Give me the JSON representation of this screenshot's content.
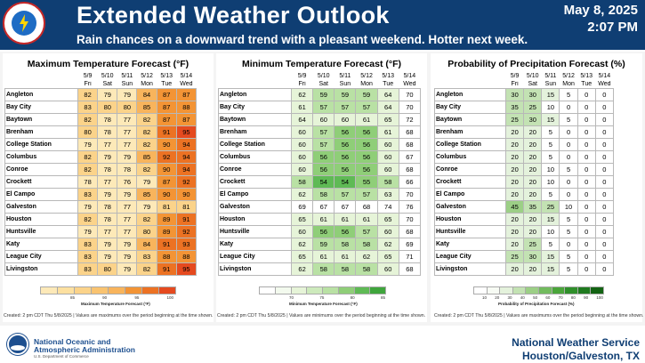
{
  "header": {
    "title": "Extended Weather Outlook",
    "subtitle": "Rain chances on a downward trend with a pleasant weekend. Hotter next week.",
    "date": "May 8, 2025",
    "time": "2:07 PM"
  },
  "dates": [
    "5/9",
    "5/10",
    "5/11",
    "5/12",
    "5/13",
    "5/14"
  ],
  "days": [
    "Fri",
    "Sat",
    "Sun",
    "Mon",
    "Tue",
    "Wed"
  ],
  "cities": [
    "Angleton",
    "Bay City",
    "Baytown",
    "Brenham",
    "College Station",
    "Columbus",
    "Conroe",
    "Crockett",
    "El Campo",
    "Galveston",
    "Houston",
    "Huntsville",
    "Katy",
    "League City",
    "Livingston"
  ],
  "max_temp": {
    "title": "Maximum Temperature Forecast (°F)",
    "legend_title": "Maximum Temperature Forecast (°F)",
    "legend_ticks": [
      "85",
      "90",
      "95",
      "100"
    ],
    "note": "Created: 2 pm CDT Thu 5/8/2025 | Values are maximums over the period beginning at the time shown.",
    "rows": [
      [
        "82",
        "79",
        "79",
        "84",
        "87",
        "87"
      ],
      [
        "83",
        "80",
        "80",
        "85",
        "87",
        "88"
      ],
      [
        "82",
        "78",
        "77",
        "82",
        "87",
        "87"
      ],
      [
        "80",
        "78",
        "77",
        "82",
        "91",
        "95"
      ],
      [
        "79",
        "77",
        "77",
        "82",
        "90",
        "94"
      ],
      [
        "82",
        "79",
        "79",
        "85",
        "92",
        "94"
      ],
      [
        "82",
        "78",
        "78",
        "82",
        "90",
        "94"
      ],
      [
        "78",
        "77",
        "76",
        "79",
        "87",
        "92"
      ],
      [
        "83",
        "79",
        "79",
        "85",
        "90",
        "90"
      ],
      [
        "79",
        "78",
        "77",
        "79",
        "81",
        "81"
      ],
      [
        "82",
        "78",
        "77",
        "82",
        "89",
        "91"
      ],
      [
        "79",
        "77",
        "77",
        "80",
        "89",
        "92"
      ],
      [
        "83",
        "79",
        "79",
        "84",
        "91",
        "93"
      ],
      [
        "83",
        "79",
        "79",
        "83",
        "88",
        "88"
      ],
      [
        "83",
        "80",
        "79",
        "82",
        "91",
        "95"
      ]
    ]
  },
  "min_temp": {
    "title": "Minimum Temperature Forecast (°F)",
    "legend_title": "Minimum Temperature Forecast (°F)",
    "legend_ticks": [
      "70",
      "75",
      "80",
      "85"
    ],
    "note": "Created: 2 pm CDT Thu 5/8/2025 | Values are minimums over the period beginning at the time shown.",
    "rows": [
      [
        "62",
        "59",
        "59",
        "59",
        "64",
        "70"
      ],
      [
        "61",
        "57",
        "57",
        "57",
        "64",
        "70"
      ],
      [
        "64",
        "60",
        "60",
        "61",
        "65",
        "72"
      ],
      [
        "60",
        "57",
        "56",
        "56",
        "61",
        "68"
      ],
      [
        "60",
        "57",
        "56",
        "56",
        "60",
        "68"
      ],
      [
        "60",
        "56",
        "56",
        "56",
        "60",
        "67"
      ],
      [
        "60",
        "56",
        "56",
        "56",
        "60",
        "68"
      ],
      [
        "58",
        "54",
        "54",
        "55",
        "58",
        "66"
      ],
      [
        "62",
        "58",
        "57",
        "57",
        "63",
        "70"
      ],
      [
        "69",
        "67",
        "67",
        "68",
        "74",
        "76"
      ],
      [
        "65",
        "61",
        "61",
        "61",
        "65",
        "70"
      ],
      [
        "60",
        "56",
        "56",
        "57",
        "60",
        "68"
      ],
      [
        "62",
        "59",
        "58",
        "58",
        "62",
        "69"
      ],
      [
        "65",
        "61",
        "61",
        "62",
        "65",
        "71"
      ],
      [
        "62",
        "58",
        "58",
        "58",
        "60",
        "68"
      ]
    ]
  },
  "pop": {
    "title": "Probability of Precipitation Forecast (%)",
    "legend_title": "Probability of Precipitation Forecast (%)",
    "legend_ticks": [
      "10",
      "20",
      "30",
      "40",
      "50",
      "60",
      "70",
      "80",
      "90",
      "100"
    ],
    "note": "Created: 2 pm CDT Thu 5/8/2025 | Values are maximums over the period beginning at the time shown.",
    "rows": [
      [
        "30",
        "30",
        "15",
        "5",
        "0",
        "0"
      ],
      [
        "35",
        "25",
        "10",
        "0",
        "0",
        "0"
      ],
      [
        "25",
        "30",
        "15",
        "5",
        "0",
        "0"
      ],
      [
        "20",
        "20",
        "5",
        "0",
        "0",
        "0"
      ],
      [
        "20",
        "20",
        "5",
        "0",
        "0",
        "0"
      ],
      [
        "20",
        "20",
        "5",
        "0",
        "0",
        "0"
      ],
      [
        "20",
        "20",
        "10",
        "5",
        "0",
        "0"
      ],
      [
        "20",
        "20",
        "10",
        "0",
        "0",
        "0"
      ],
      [
        "20",
        "20",
        "5",
        "0",
        "0",
        "0"
      ],
      [
        "45",
        "35",
        "25",
        "10",
        "0",
        "0"
      ],
      [
        "20",
        "20",
        "15",
        "5",
        "0",
        "0"
      ],
      [
        "20",
        "20",
        "10",
        "5",
        "0",
        "0"
      ],
      [
        "20",
        "25",
        "5",
        "0",
        "0",
        "0"
      ],
      [
        "25",
        "30",
        "15",
        "5",
        "0",
        "0"
      ],
      [
        "20",
        "20",
        "15",
        "5",
        "0",
        "0"
      ]
    ]
  },
  "footer": {
    "noaa_line1": "National Oceanic and",
    "noaa_line2": "Atmospheric Administration",
    "noaa_line3": "U.S. Department of Commerce",
    "nws_line1": "National Weather Service",
    "nws_line2": "Houston/Galveston, TX"
  },
  "colors": {
    "header_bg": "#0f3e73",
    "max_scale": [
      "#fde9b8",
      "#fbd38a",
      "#f8b45c",
      "#f39435",
      "#ec7223",
      "#e54a1f"
    ],
    "min_scale": [
      "#ffffff",
      "#e6f4d8",
      "#b9e1a4",
      "#8fce78",
      "#5fba55"
    ],
    "pop_scale": [
      "#ffffff",
      "#e4f2dc",
      "#c3e2b3",
      "#9ccf86"
    ]
  }
}
